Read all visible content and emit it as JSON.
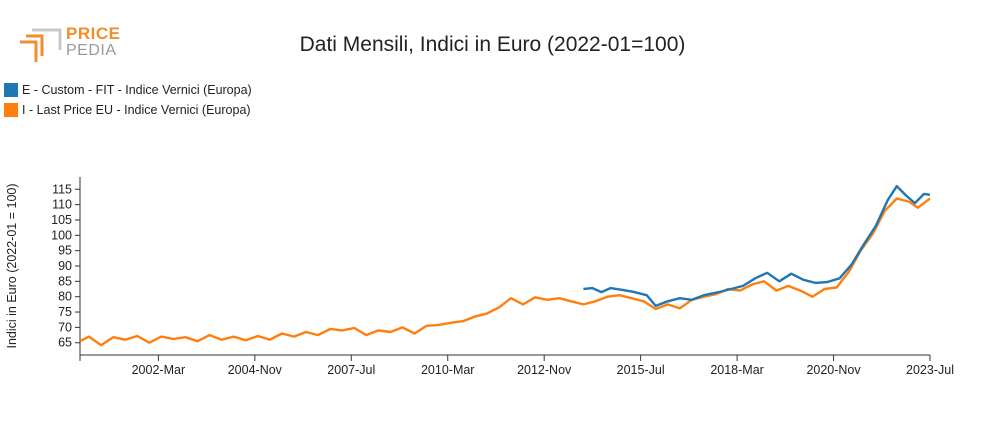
{
  "logo": {
    "line1": "PRICE",
    "line2": "PEDIA"
  },
  "chart_data": {
    "type": "line",
    "title": "Dati Mensili, Indici in Euro (2022-01=100)",
    "ylabel": "Indici in Euro (2022-01 = 100)",
    "xlabel": "",
    "ylim": [
      61,
      119
    ],
    "xlim": [
      "2000-01",
      "2023-07"
    ],
    "x_ticks": [
      "2002-Mar",
      "2004-Nov",
      "2007-Jul",
      "2010-Mar",
      "2012-Nov",
      "2015-Jul",
      "2018-Mar",
      "2020-Nov",
      "2023-Jul"
    ],
    "y_ticks": [
      65,
      70,
      75,
      80,
      85,
      90,
      95,
      100,
      105,
      110,
      115
    ],
    "grid": false,
    "legend_position": "top-left",
    "series": [
      {
        "name": "E - Custom - FIT - Indice Vernici (Europa)",
        "color": "#1f77b4",
        "points": [
          [
            "2013-12",
            82.5
          ],
          [
            "2014-03",
            82.8
          ],
          [
            "2014-06",
            81.5
          ],
          [
            "2014-09",
            82.8
          ],
          [
            "2015-01",
            82.2
          ],
          [
            "2015-05",
            81.5
          ],
          [
            "2015-09",
            80.5
          ],
          [
            "2015-12",
            77.0
          ],
          [
            "2016-04",
            78.5
          ],
          [
            "2016-08",
            79.5
          ],
          [
            "2016-12",
            79.0
          ],
          [
            "2017-04",
            80.5
          ],
          [
            "2017-09",
            81.5
          ],
          [
            "2018-01",
            82.5
          ],
          [
            "2018-05",
            83.5
          ],
          [
            "2018-09",
            86.0
          ],
          [
            "2019-01",
            87.8
          ],
          [
            "2019-05",
            85.0
          ],
          [
            "2019-09",
            87.5
          ],
          [
            "2020-01",
            85.5
          ],
          [
            "2020-05",
            84.5
          ],
          [
            "2020-09",
            84.8
          ],
          [
            "2021-01",
            86.0
          ],
          [
            "2021-05",
            90.5
          ],
          [
            "2021-09",
            97.0
          ],
          [
            "2022-01",
            103.0
          ],
          [
            "2022-05",
            111.5
          ],
          [
            "2022-08",
            116.0
          ],
          [
            "2022-11",
            113.0
          ],
          [
            "2023-02",
            110.5
          ],
          [
            "2023-05",
            113.5
          ],
          [
            "2023-07",
            113.2
          ]
        ]
      },
      {
        "name": "I - Last Price EU - Indice Vernici (Europa)",
        "color": "#ff7f0e",
        "points": [
          [
            "2000-01",
            65.5
          ],
          [
            "2000-04",
            67.0
          ],
          [
            "2000-08",
            64.2
          ],
          [
            "2000-12",
            66.8
          ],
          [
            "2001-04",
            66.0
          ],
          [
            "2001-08",
            67.2
          ],
          [
            "2001-12",
            65.0
          ],
          [
            "2002-04",
            67.0
          ],
          [
            "2002-08",
            66.2
          ],
          [
            "2002-12",
            66.8
          ],
          [
            "2003-04",
            65.5
          ],
          [
            "2003-08",
            67.5
          ],
          [
            "2003-12",
            66.0
          ],
          [
            "2004-04",
            67.0
          ],
          [
            "2004-08",
            65.8
          ],
          [
            "2004-12",
            67.2
          ],
          [
            "2005-04",
            66.0
          ],
          [
            "2005-08",
            68.0
          ],
          [
            "2005-12",
            67.0
          ],
          [
            "2006-04",
            68.5
          ],
          [
            "2006-08",
            67.5
          ],
          [
            "2006-12",
            69.5
          ],
          [
            "2007-04",
            69.0
          ],
          [
            "2007-08",
            69.8
          ],
          [
            "2007-12",
            67.5
          ],
          [
            "2008-04",
            69.0
          ],
          [
            "2008-08",
            68.5
          ],
          [
            "2008-12",
            70.0
          ],
          [
            "2009-04",
            68.0
          ],
          [
            "2009-08",
            70.5
          ],
          [
            "2009-12",
            70.8
          ],
          [
            "2010-04",
            71.5
          ],
          [
            "2010-08",
            72.0
          ],
          [
            "2010-12",
            73.5
          ],
          [
            "2011-04",
            74.5
          ],
          [
            "2011-08",
            76.5
          ],
          [
            "2011-12",
            79.5
          ],
          [
            "2012-04",
            77.5
          ],
          [
            "2012-08",
            79.8
          ],
          [
            "2012-12",
            79.0
          ],
          [
            "2013-04",
            79.5
          ],
          [
            "2013-08",
            78.5
          ],
          [
            "2013-12",
            77.5
          ],
          [
            "2014-04",
            78.5
          ],
          [
            "2014-08",
            80.0
          ],
          [
            "2014-12",
            80.5
          ],
          [
            "2015-04",
            79.5
          ],
          [
            "2015-08",
            78.5
          ],
          [
            "2015-12",
            76.0
          ],
          [
            "2016-04",
            77.5
          ],
          [
            "2016-08",
            76.2
          ],
          [
            "2016-12",
            79.0
          ],
          [
            "2017-04",
            80.0
          ],
          [
            "2017-08",
            80.8
          ],
          [
            "2017-12",
            82.5
          ],
          [
            "2018-04",
            82.0
          ],
          [
            "2018-08",
            84.0
          ],
          [
            "2018-12",
            85.0
          ],
          [
            "2019-04",
            82.0
          ],
          [
            "2019-08",
            83.5
          ],
          [
            "2019-12",
            82.0
          ],
          [
            "2020-04",
            80.0
          ],
          [
            "2020-08",
            82.5
          ],
          [
            "2020-12",
            83.0
          ],
          [
            "2021-04",
            88.0
          ],
          [
            "2021-08",
            95.0
          ],
          [
            "2021-12",
            100.5
          ],
          [
            "2022-04",
            108.0
          ],
          [
            "2022-08",
            112.0
          ],
          [
            "2022-12",
            111.0
          ],
          [
            "2023-03",
            109.0
          ],
          [
            "2023-07",
            112.0
          ]
        ]
      }
    ]
  }
}
